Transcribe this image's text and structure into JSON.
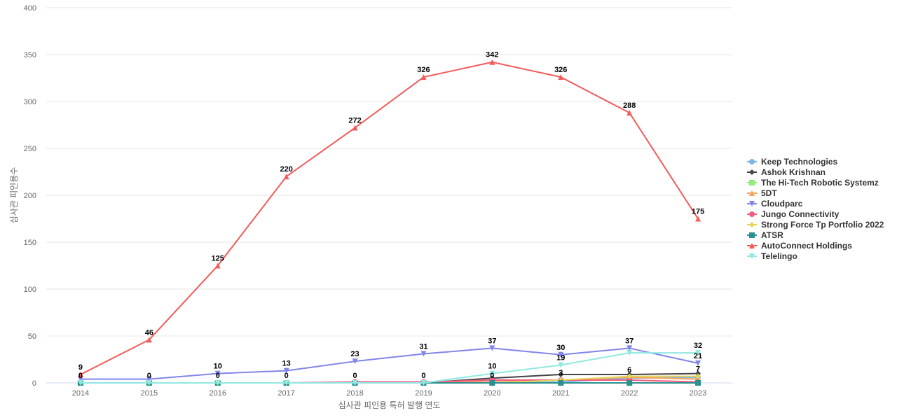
{
  "chart_data": {
    "type": "line",
    "title": "",
    "xlabel": "심사관 피인용 특허 발행 연도",
    "ylabel": "심사관 피인용수",
    "x": [
      "2014",
      "2015",
      "2016",
      "2017",
      "2018",
      "2019",
      "2020",
      "2021",
      "2022",
      "2023"
    ],
    "ylim": [
      0,
      400
    ],
    "yticks": [
      0,
      50,
      100,
      150,
      200,
      250,
      300,
      350,
      400
    ],
    "grid": true,
    "legend_position": "right",
    "series": [
      {
        "name": "Keep Technologies",
        "color": "#7cb5ec",
        "marker": "circle",
        "values": [
          0,
          0,
          0,
          0,
          0,
          0,
          0,
          1,
          5,
          6
        ],
        "labels": [
          false,
          false,
          false,
          false,
          false,
          false,
          false,
          false,
          false,
          false
        ]
      },
      {
        "name": "Ashok Krishnan",
        "color": "#434348",
        "marker": "diamond",
        "values": [
          0,
          0,
          0,
          0,
          0,
          0,
          5,
          9,
          9,
          10
        ],
        "labels": [
          false,
          false,
          false,
          false,
          false,
          false,
          false,
          false,
          false,
          false
        ]
      },
      {
        "name": "The Hi-Tech Robotic Systemz",
        "color": "#90ed7d",
        "marker": "square",
        "values": [
          0,
          0,
          0,
          0,
          0,
          0,
          0,
          0,
          0,
          0
        ],
        "labels": [
          false,
          false,
          false,
          false,
          false,
          false,
          false,
          false,
          false,
          false
        ]
      },
      {
        "name": "5DT",
        "color": "#f7a35c",
        "marker": "triangle",
        "values": [
          0,
          0,
          0,
          0,
          0,
          0,
          2,
          3,
          6,
          4
        ],
        "labels": [
          false,
          false,
          false,
          false,
          false,
          false,
          false,
          false,
          true,
          false
        ]
      },
      {
        "name": "Cloudparc",
        "color": "#8085e9",
        "marker": "triangle-down",
        "values": [
          4,
          4,
          10,
          13,
          23,
          31,
          37,
          30,
          37,
          21
        ],
        "labels": [
          false,
          false,
          true,
          true,
          true,
          true,
          true,
          true,
          true,
          true
        ]
      },
      {
        "name": "Jungo Connectivity",
        "color": "#f15c80",
        "marker": "circle",
        "values": [
          0,
          0,
          0,
          0,
          1,
          1,
          3,
          3,
          3,
          1
        ],
        "labels": [
          false,
          false,
          false,
          false,
          false,
          false,
          false,
          true,
          false,
          false
        ]
      },
      {
        "name": "Strong Force Tp Portfolio 2022",
        "color": "#e4d354",
        "marker": "diamond",
        "values": [
          0,
          0,
          0,
          0,
          0,
          0,
          0,
          3,
          7,
          7
        ],
        "labels": [
          false,
          false,
          false,
          false,
          false,
          false,
          false,
          false,
          false,
          true
        ]
      },
      {
        "name": "ATSR",
        "color": "#2b908f",
        "marker": "square",
        "values": [
          0,
          0,
          0,
          0,
          0,
          0,
          0,
          0,
          0,
          0
        ],
        "labels": [
          true,
          true,
          true,
          true,
          true,
          true,
          true,
          false,
          false,
          false
        ]
      },
      {
        "name": "AutoConnect Holdings",
        "color": "#f45b5b",
        "marker": "triangle",
        "values": [
          9,
          46,
          125,
          220,
          272,
          326,
          342,
          326,
          288,
          175
        ],
        "labels": [
          true,
          true,
          true,
          true,
          true,
          true,
          true,
          true,
          true,
          true
        ]
      },
      {
        "name": "Telelingo",
        "color": "#91e8e1",
        "marker": "triangle-down",
        "values": [
          0,
          0,
          0,
          0,
          0,
          0,
          10,
          19,
          32,
          32
        ],
        "labels": [
          false,
          false,
          false,
          false,
          false,
          false,
          true,
          true,
          false,
          true
        ]
      }
    ]
  }
}
